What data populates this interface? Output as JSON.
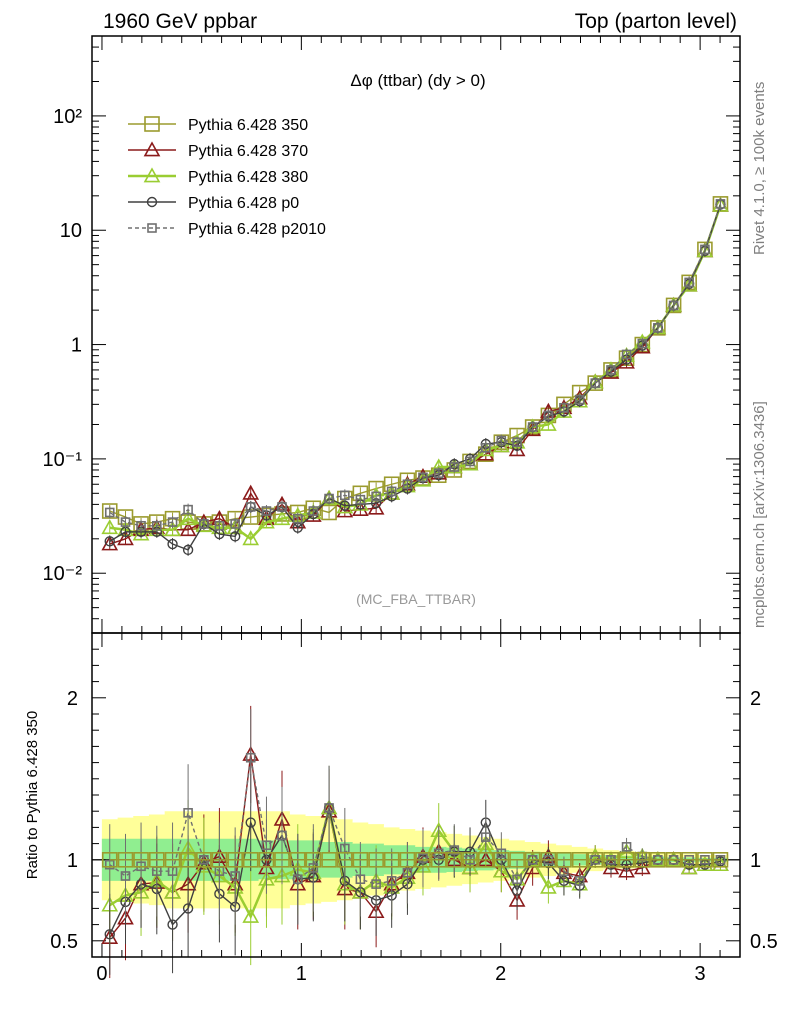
{
  "header": {
    "left": "1960 GeV ppbar",
    "right": "Top (parton level)"
  },
  "side_labels": {
    "rivet": "Rivet 4.1.0, ≥ 100k events",
    "mcplots": "mcplots.cern.ch [arXiv:1306.3436]"
  },
  "colors": {
    "c350": "#9b9b2e",
    "c370": "#8b1a1a",
    "c380": "#9acd32",
    "p0": "#404040",
    "p2010": "#707070",
    "band_inner": "#90ee90",
    "band_outer": "#ffff99"
  },
  "chart_data": [
    {
      "type": "line",
      "title": "Δφ (ttbar) (dy > 0)",
      "watermark": "(MC_FBA_TTBAR)",
      "yscale": "log",
      "xlim": [
        -0.05,
        3.2
      ],
      "ylim": [
        0.003,
        500
      ],
      "ytick_labels": [
        "10⁻²",
        "10⁻¹",
        "1",
        "10",
        "10²"
      ],
      "ytick_values": [
        0.01,
        0.1,
        1,
        10,
        100
      ],
      "legend": [
        "Pythia 6.428 350",
        "Pythia 6.428 370",
        "Pythia 6.428 380",
        "Pythia 6.428 p0",
        "Pythia 6.428 p2010"
      ],
      "x": [
        0.039,
        0.118,
        0.196,
        0.275,
        0.354,
        0.432,
        0.511,
        0.589,
        0.668,
        0.746,
        0.825,
        0.903,
        0.982,
        1.06,
        1.139,
        1.218,
        1.296,
        1.375,
        1.453,
        1.532,
        1.61,
        1.689,
        1.767,
        1.846,
        1.925,
        2.003,
        2.082,
        2.16,
        2.239,
        2.317,
        2.396,
        2.474,
        2.553,
        2.631,
        2.71,
        2.788,
        2.867,
        2.945,
        3.024,
        3.102
      ],
      "series": [
        {
          "name": "Pythia 6.428 350",
          "values": [
            0.035,
            0.031,
            0.027,
            0.028,
            0.03,
            0.028,
            0.027,
            0.028,
            0.03,
            0.031,
            0.032,
            0.033,
            0.034,
            0.037,
            0.034,
            0.045,
            0.05,
            0.055,
            0.06,
            0.065,
            0.068,
            0.072,
            0.08,
            0.095,
            0.11,
            0.14,
            0.16,
            0.19,
            0.24,
            0.3,
            0.38,
            0.46,
            0.6,
            0.76,
            1.0,
            1.4,
            2.2,
            3.5,
            6.8,
            17.0
          ]
        },
        {
          "name": "Pythia 6.428 370",
          "values": [
            0.018,
            0.02,
            0.024,
            0.025,
            0.024,
            0.024,
            0.028,
            0.03,
            0.025,
            0.05,
            0.03,
            0.04,
            0.028,
            0.032,
            0.045,
            0.035,
            0.036,
            0.037,
            0.05,
            0.06,
            0.07,
            0.075,
            0.085,
            0.09,
            0.11,
            0.13,
            0.12,
            0.18,
            0.26,
            0.28,
            0.34,
            0.47,
            0.57,
            0.7,
            0.95,
            1.4,
            2.2,
            3.3,
            6.6,
            16.5
          ]
        },
        {
          "name": "Pythia 6.428 380",
          "values": [
            0.025,
            0.024,
            0.022,
            0.024,
            0.024,
            0.03,
            0.026,
            0.025,
            0.025,
            0.02,
            0.028,
            0.03,
            0.032,
            0.034,
            0.045,
            0.038,
            0.04,
            0.048,
            0.05,
            0.058,
            0.065,
            0.085,
            0.085,
            0.09,
            0.12,
            0.13,
            0.14,
            0.19,
            0.2,
            0.26,
            0.32,
            0.47,
            0.6,
            0.8,
            1.05,
            1.4,
            2.2,
            3.3,
            6.6,
            16.5
          ]
        },
        {
          "name": "Pythia 6.428 p0",
          "values": [
            0.019,
            0.023,
            0.023,
            0.023,
            0.018,
            0.016,
            0.027,
            0.022,
            0.021,
            0.038,
            0.032,
            0.038,
            0.025,
            0.033,
            0.045,
            0.039,
            0.04,
            0.041,
            0.047,
            0.055,
            0.068,
            0.072,
            0.09,
            0.1,
            0.135,
            0.14,
            0.13,
            0.19,
            0.235,
            0.26,
            0.32,
            0.46,
            0.58,
            0.74,
            0.98,
            1.4,
            2.2,
            3.4,
            6.6,
            16.8
          ]
        },
        {
          "name": "Pythia 6.428 p2010",
          "values": [
            0.034,
            0.028,
            0.026,
            0.026,
            0.028,
            0.036,
            0.027,
            0.026,
            0.027,
            0.038,
            0.035,
            0.038,
            0.03,
            0.035,
            0.045,
            0.048,
            0.044,
            0.047,
            0.052,
            0.06,
            0.069,
            0.075,
            0.085,
            0.095,
            0.125,
            0.145,
            0.14,
            0.19,
            0.24,
            0.28,
            0.33,
            0.46,
            0.6,
            0.82,
            1.02,
            1.4,
            2.2,
            3.5,
            6.8,
            17.0
          ]
        }
      ]
    },
    {
      "type": "line",
      "ylabel": "Ratio to Pythia 6.428 350",
      "ylim": [
        0.4,
        2.4
      ],
      "ytick_labels": [
        "0.5",
        "1",
        "2"
      ],
      "ytick_values": [
        0.5,
        1,
        2
      ],
      "xtick_labels": [
        "0",
        "1",
        "2",
        "3"
      ],
      "xtick_values": [
        0,
        1,
        2,
        3
      ],
      "band_inner_halfwidth": [
        0.13,
        0.13,
        0.13,
        0.13,
        0.13,
        0.13,
        0.13,
        0.13,
        0.13,
        0.13,
        0.12,
        0.12,
        0.12,
        0.12,
        0.11,
        0.11,
        0.1,
        0.1,
        0.09,
        0.09,
        0.08,
        0.08,
        0.075,
        0.07,
        0.065,
        0.06,
        0.055,
        0.05,
        0.045,
        0.04,
        0.035,
        0.03,
        0.03,
        0.025,
        0.02,
        0.02,
        0.015,
        0.015,
        0.012,
        0.012
      ],
      "band_outer_halfwidth": [
        0.25,
        0.26,
        0.27,
        0.28,
        0.3,
        0.3,
        0.3,
        0.3,
        0.3,
        0.3,
        0.3,
        0.3,
        0.28,
        0.27,
        0.26,
        0.25,
        0.23,
        0.22,
        0.2,
        0.19,
        0.18,
        0.17,
        0.16,
        0.15,
        0.14,
        0.13,
        0.12,
        0.11,
        0.1,
        0.09,
        0.08,
        0.07,
        0.06,
        0.055,
        0.05,
        0.045,
        0.04,
        0.035,
        0.03,
        0.03
      ],
      "series": [
        {
          "name": "Pythia 6.428 370",
          "values": [
            0.52,
            0.64,
            0.85,
            0.86,
            0.8,
            0.85,
            0.98,
            1.02,
            0.85,
            1.65,
            0.95,
            1.25,
            0.85,
            0.9,
            1.3,
            0.82,
            0.8,
            0.68,
            0.85,
            0.92,
            1.02,
            1.05,
            1.0,
            0.95,
            1.0,
            0.93,
            0.75,
            0.95,
            1.02,
            0.92,
            0.9,
            1.02,
            0.95,
            0.93,
            0.95,
            1.0,
            1.0,
            0.95,
            0.97,
            0.97
          ]
        },
        {
          "name": "Pythia 6.428 380",
          "values": [
            0.72,
            0.78,
            0.8,
            0.87,
            0.8,
            1.07,
            0.96,
            0.9,
            0.83,
            0.65,
            0.88,
            0.9,
            0.94,
            0.92,
            1.32,
            0.85,
            0.8,
            0.87,
            0.83,
            0.89,
            0.96,
            1.18,
            1.05,
            0.95,
            1.1,
            0.93,
            0.88,
            1.0,
            0.83,
            0.87,
            0.85,
            1.02,
            1.0,
            1.05,
            1.02,
            1.0,
            1.0,
            0.95,
            0.97,
            0.97
          ]
        },
        {
          "name": "Pythia 6.428 p0",
          "values": [
            0.54,
            0.74,
            0.85,
            0.82,
            0.6,
            0.7,
            1.0,
            0.79,
            0.71,
            1.23,
            1.0,
            1.15,
            0.88,
            0.89,
            1.32,
            0.87,
            0.8,
            0.75,
            0.78,
            0.85,
            1.0,
            1.0,
            1.05,
            1.05,
            1.23,
            1.0,
            0.81,
            1.0,
            0.98,
            0.87,
            0.84,
            1.0,
            0.97,
            0.97,
            0.98,
            1.0,
            1.0,
            0.97,
            0.97,
            0.99
          ]
        },
        {
          "name": "Pythia 6.428 p2010",
          "values": [
            0.97,
            0.9,
            0.96,
            0.93,
            0.93,
            1.29,
            1.0,
            0.93,
            0.9,
            1.63,
            1.09,
            1.15,
            0.88,
            0.95,
            1.32,
            1.07,
            0.88,
            0.85,
            0.87,
            0.92,
            1.01,
            1.04,
            1.06,
            1.0,
            1.14,
            1.04,
            0.88,
            1.0,
            1.0,
            0.93,
            0.87,
            1.0,
            1.0,
            1.08,
            1.02,
            1.0,
            1.0,
            1.0,
            1.0,
            1.0
          ]
        },
        {
          "name": "Pythia 6.428 350",
          "values": [
            1,
            1,
            1,
            1,
            1,
            1,
            1,
            1,
            1,
            1,
            1,
            1,
            1,
            1,
            1,
            1,
            1,
            1,
            1,
            1,
            1,
            1,
            1,
            1,
            1,
            1,
            1,
            1,
            1,
            1,
            1,
            1,
            1,
            1,
            1,
            1,
            1,
            1,
            1,
            1
          ]
        }
      ]
    }
  ]
}
